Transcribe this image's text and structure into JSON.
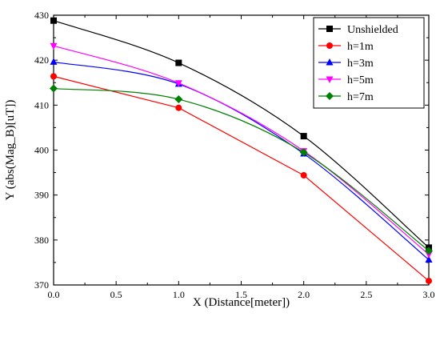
{
  "chart_data": {
    "type": "line",
    "title": "",
    "xlabel": "X (Distance[meter])",
    "ylabel": "Y (abs(Mag_B)[uT])",
    "xlim": [
      0.0,
      3.0
    ],
    "ylim": [
      370,
      430
    ],
    "xticks": [
      "0.0",
      "0.5",
      "1.0",
      "1.5",
      "2.0",
      "2.5",
      "3.0"
    ],
    "yticks": [
      "370",
      "380",
      "390",
      "400",
      "410",
      "420",
      "430"
    ],
    "grid": false,
    "legend": "top-right",
    "x": [
      0.0,
      1.0,
      2.0,
      3.0
    ],
    "series": [
      {
        "name": "Unshielded",
        "values": [
          428.8,
          419.4,
          403.1,
          378.3
        ],
        "color": "#000000",
        "marker": "square"
      },
      {
        "name": "h=1m",
        "values": [
          416.4,
          409.4,
          394.4,
          370.9
        ],
        "color": "#ff0000",
        "marker": "circle"
      },
      {
        "name": "h=3m",
        "values": [
          419.6,
          414.7,
          399.2,
          375.6
        ],
        "color": "#0000ff",
        "marker": "triangle-up"
      },
      {
        "name": "h=5m",
        "values": [
          423.2,
          414.9,
          399.8,
          376.8
        ],
        "color": "#ff00ff",
        "marker": "triangle-down"
      },
      {
        "name": "h=7m",
        "values": [
          413.7,
          411.3,
          399.5,
          377.6
        ],
        "color": "#008000",
        "marker": "diamond"
      }
    ]
  }
}
